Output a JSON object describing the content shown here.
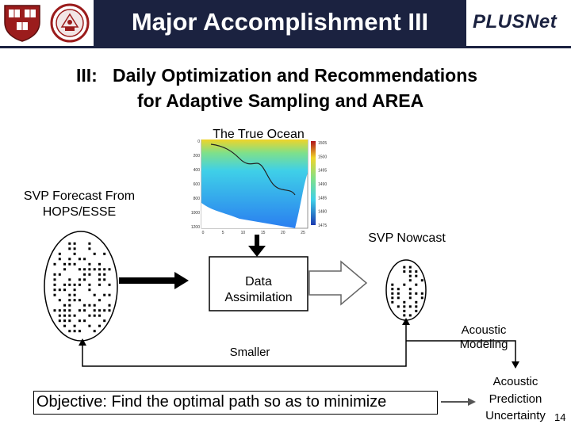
{
  "slide": {
    "title": "Major Accomplishment III",
    "brand": "PLUSNet",
    "subtitle_line1": "III:   Daily Optimization and Recommendations",
    "subtitle_line2": "for Adaptive Sampling and AREA",
    "page_number": "14"
  },
  "logos": [
    {
      "name": "harvard-shield-logo",
      "colors": {
        "field": "#9b1c1c",
        "books": "#ffffff"
      }
    },
    {
      "name": "university-seal-logo",
      "colors": {
        "ring": "#9b1c1c",
        "center": "#f2e6e6"
      }
    }
  ],
  "diagram": {
    "true_ocean_label": "The True Ocean",
    "svp_forecast_label_1": "SVP Forecast From",
    "svp_forecast_label_2": "HOPS/ESSE",
    "svp_nowcast_label": "SVP Nowcast",
    "data_assimilation_label_1": "Data",
    "data_assimilation_label_2": "Assimilation",
    "acoustic_modeling_label_1": "Acoustic",
    "acoustic_modeling_label_2": "Modeling",
    "smaller_label": "Smaller",
    "acoustic_prediction_label_1": "Acoustic",
    "acoustic_prediction_label_2": "Prediction",
    "acoustic_prediction_label_3": "Uncertainty",
    "objective_text": "Objective: Find the optimal path so as to minimize"
  },
  "ocean_plot": {
    "y_ticks": [
      "0",
      "200",
      "400",
      "600",
      "800",
      "1000",
      "1200"
    ],
    "x_ticks": [
      "0",
      "5",
      "10",
      "15",
      "20",
      "25"
    ],
    "colorbar_ticks": [
      "1505",
      "1500",
      "1495",
      "1490",
      "1485",
      "1480",
      "1475"
    ]
  },
  "colors": {
    "header": "#1b2240",
    "ocean_deep": "#2a9bf0",
    "ocean_warm": "#f0d428",
    "arrow_gray": "#888888"
  }
}
